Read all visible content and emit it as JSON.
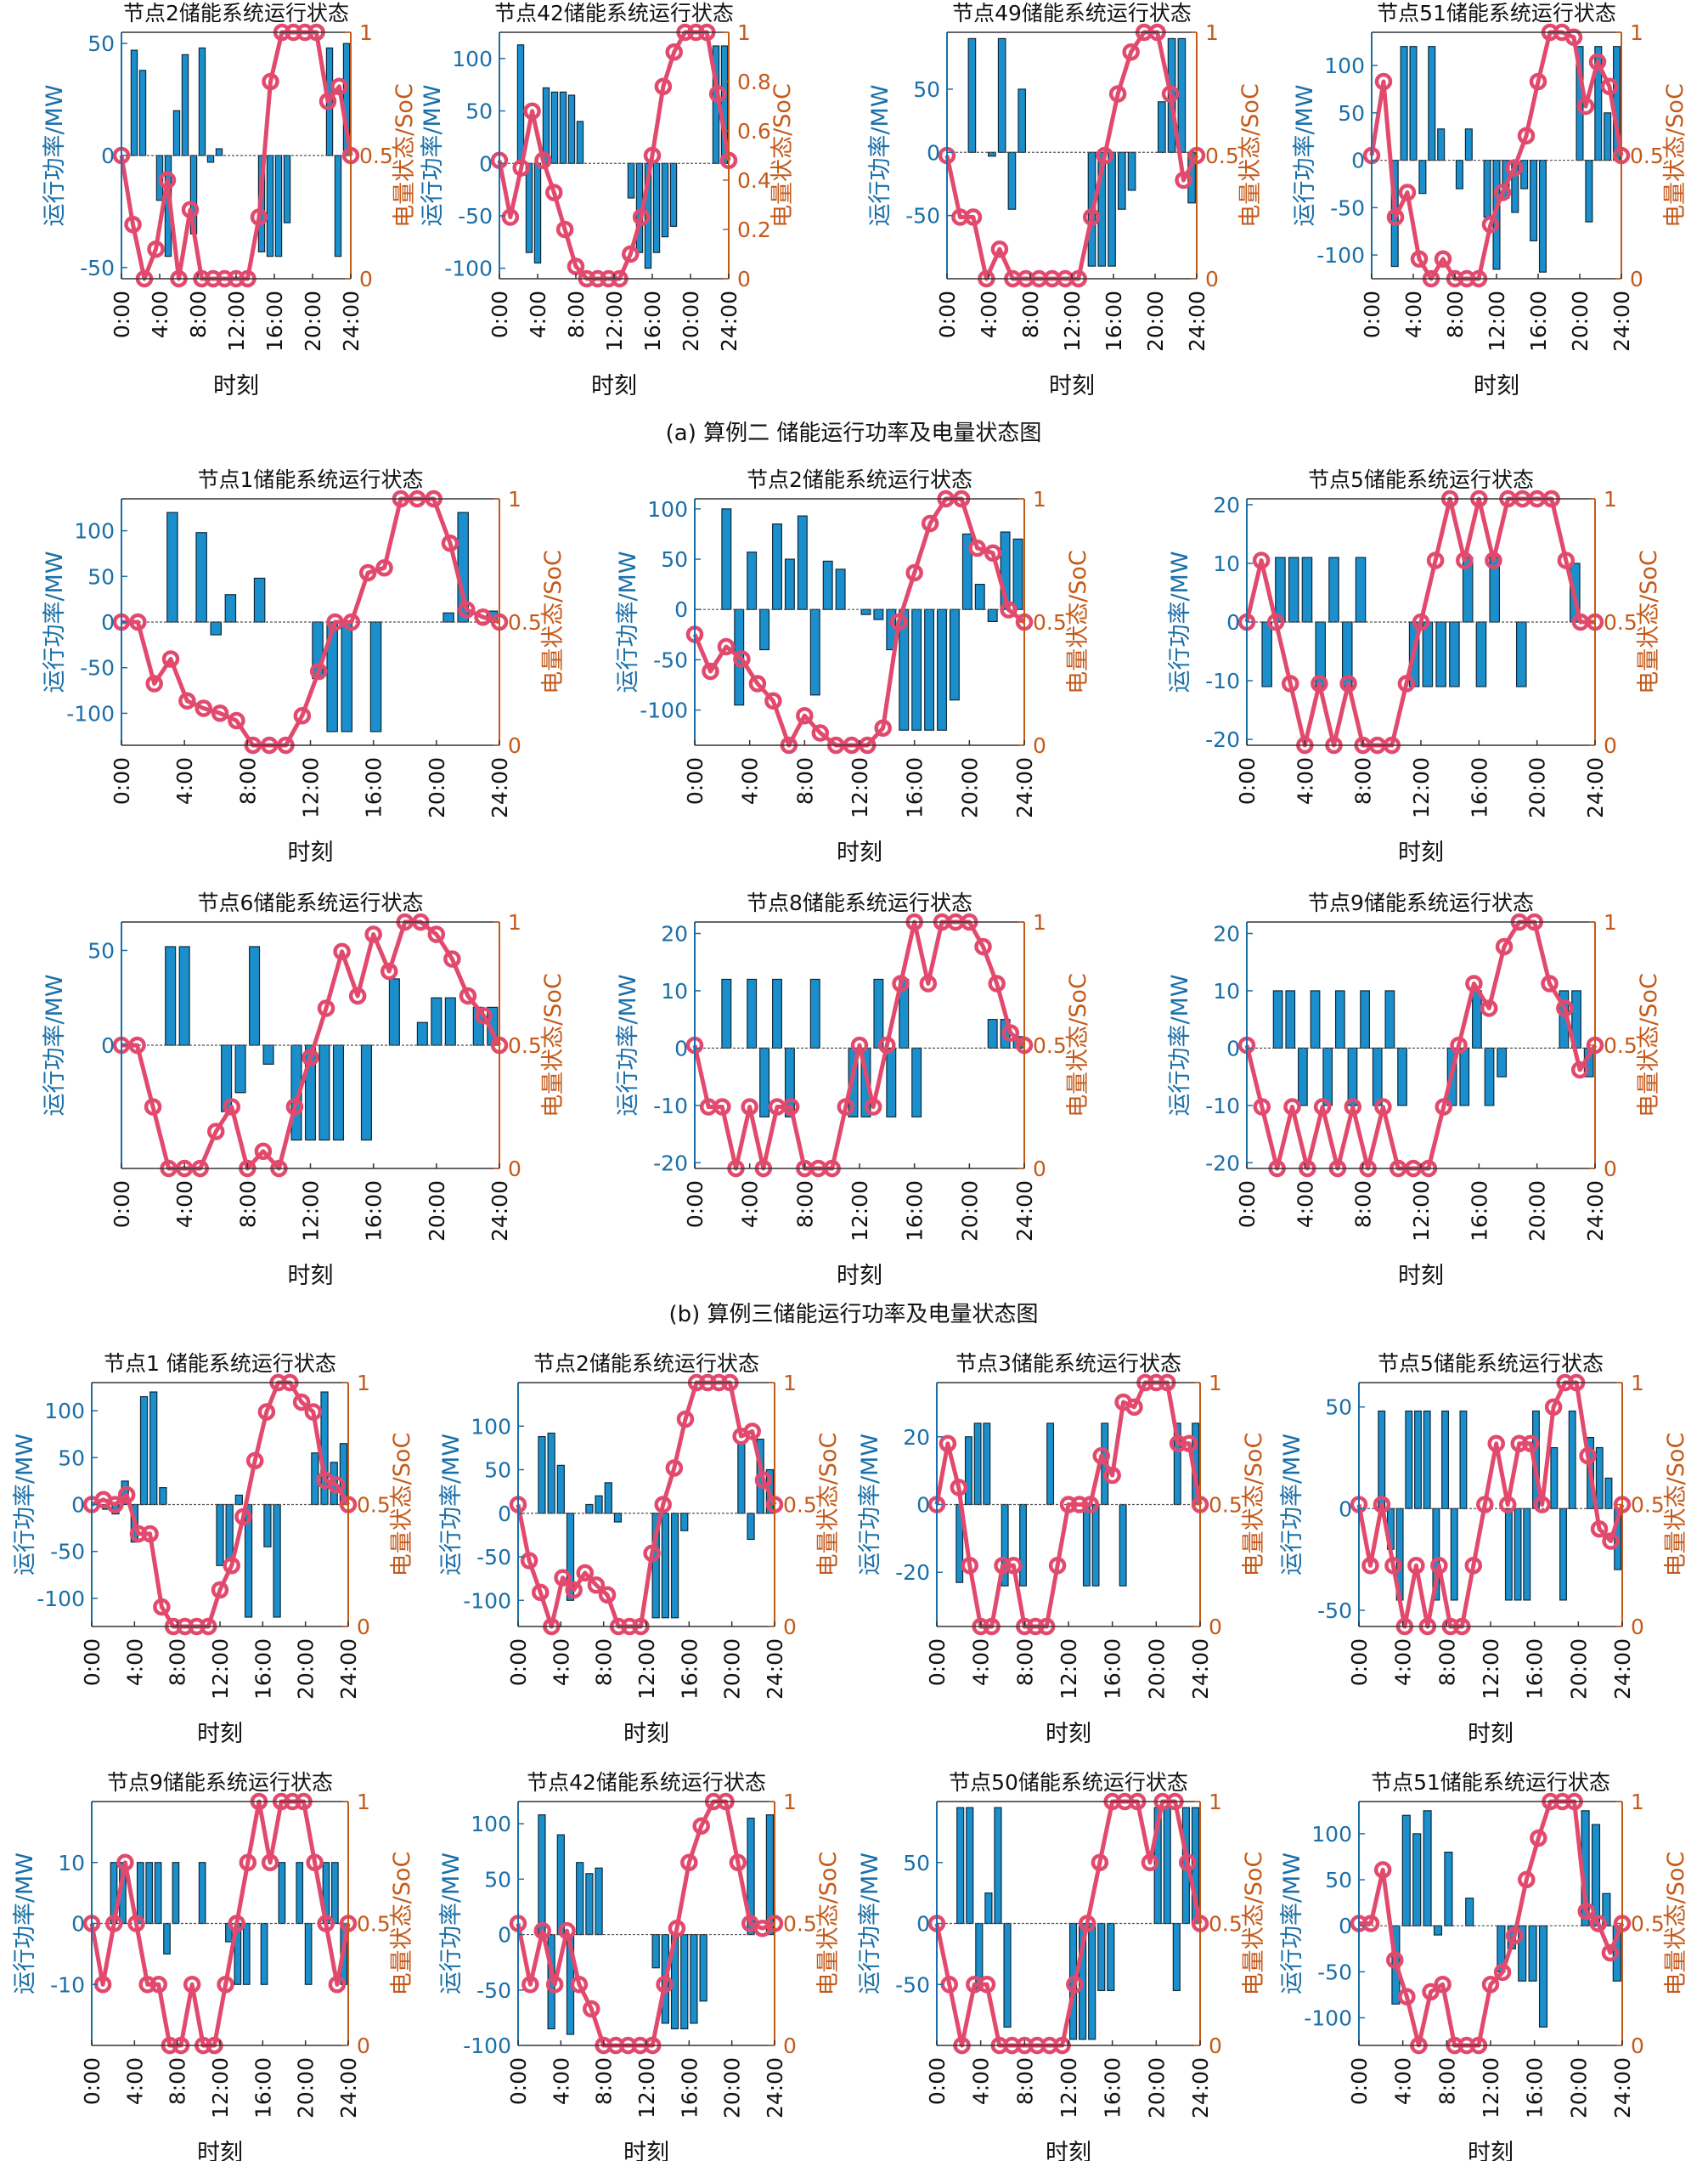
{
  "colors": {
    "power": "#1b8fcb",
    "soc": "#e24a6d",
    "left_axis": "#1a6fa8",
    "right_axis": "#c45a1a"
  },
  "x_ticks": [
    "0:00",
    "4:00",
    "8:00",
    "12:00",
    "16:00",
    "20:00",
    "24:00"
  ],
  "soc_ticks_default": [
    "0",
    "0.5",
    "1"
  ],
  "xlabel": "时刻",
  "ylabel_left": "运行功率/MW",
  "ylabel_right": "电量状态/SoC",
  "captions": {
    "a": "(a)  算例二  储能运行功率及电量状态图",
    "b": "(b)  算例三储能运行功率及电量状态图"
  },
  "chart_data": [
    {
      "type": "bar",
      "title": "节点2储能系统运行状态",
      "ylim": [
        -55,
        55
      ],
      "yticks": [
        -50,
        0,
        50
      ],
      "power": [
        0,
        47,
        38,
        0,
        -20,
        -45,
        20,
        45,
        -35,
        48,
        -3,
        3,
        0,
        0,
        0,
        0,
        -43,
        -45,
        -45,
        -30,
        0,
        0,
        0,
        0,
        48,
        -45,
        50
      ],
      "soc": [
        0.5,
        0.22,
        0.0,
        0.12,
        0.4,
        0.0,
        0.28,
        0.0,
        0.0,
        0.0,
        0.0,
        0.0,
        0.25,
        0.8,
        1.0,
        1.0,
        1.0,
        1.0,
        0.72,
        0.78,
        0.5
      ]
    },
    {
      "type": "bar",
      "title": "节点42储能系统运行状态",
      "ylim": [
        -110,
        125
      ],
      "yticks": [
        -100,
        -50,
        0,
        50,
        100
      ],
      "soc_ticks": [
        "0",
        "0.2",
        "0.4",
        "0.6",
        "0.8",
        "1"
      ],
      "power": [
        0,
        0,
        113,
        -85,
        -95,
        72,
        68,
        68,
        65,
        40,
        0,
        0,
        0,
        0,
        0,
        -33,
        -85,
        -100,
        -85,
        -70,
        -60,
        0,
        0,
        0,
        0,
        112,
        112
      ],
      "soc": [
        0.48,
        0.25,
        0.45,
        0.68,
        0.48,
        0.35,
        0.2,
        0.05,
        0.0,
        0.0,
        0.0,
        0.0,
        0.1,
        0.25,
        0.5,
        0.78,
        0.92,
        1.0,
        1.0,
        1.0,
        0.75,
        0.48
      ]
    },
    {
      "type": "bar",
      "title": "节点49储能系统运行状态",
      "ylim": [
        -100,
        95
      ],
      "yticks": [
        -50,
        0,
        50
      ],
      "power": [
        0,
        0,
        90,
        0,
        -3,
        90,
        -45,
        50,
        0,
        0,
        0,
        0,
        0,
        0,
        -90,
        -90,
        -90,
        -45,
        -30,
        0,
        0,
        40,
        90,
        90,
        -40
      ],
      "soc": [
        0.5,
        0.25,
        0.25,
        0.0,
        0.12,
        0.0,
        0.0,
        0.0,
        0.0,
        0.0,
        0.0,
        0.25,
        0.5,
        0.75,
        0.92,
        1.0,
        1.0,
        0.75,
        0.4,
        0.5
      ]
    },
    {
      "type": "bar",
      "title": "节点51储能系统运行状态",
      "ylim": [
        -125,
        135
      ],
      "yticks": [
        -100,
        -50,
        0,
        50,
        100
      ],
      "power": [
        0,
        0,
        -112,
        120,
        120,
        -35,
        120,
        33,
        0,
        -30,
        33,
        0,
        -60,
        -115,
        -40,
        -55,
        -30,
        -85,
        -118,
        0,
        0,
        0,
        120,
        -65,
        120,
        50,
        120
      ],
      "soc": [
        0.5,
        0.8,
        0.25,
        0.35,
        0.08,
        0.0,
        0.08,
        0.0,
        0.0,
        0.0,
        0.22,
        0.35,
        0.45,
        0.58,
        0.8,
        1.0,
        1.0,
        0.98,
        0.7,
        0.88,
        0.78,
        0.5
      ]
    },
    {
      "type": "bar",
      "title": "节点1储能系统运行状态",
      "ylim": [
        -135,
        135
      ],
      "yticks": [
        -100,
        -50,
        0,
        50,
        100
      ],
      "power": [
        0,
        0,
        0,
        120,
        0,
        98,
        -14,
        30,
        0,
        48,
        0,
        0,
        0,
        -62,
        -120,
        -120,
        0,
        -120,
        0,
        0,
        0,
        0,
        10,
        120,
        0,
        12
      ],
      "soc": [
        0.5,
        0.5,
        0.25,
        0.35,
        0.18,
        0.15,
        0.13,
        0.1,
        0.0,
        0.0,
        0.0,
        0.12,
        0.3,
        0.5,
        0.5,
        0.7,
        0.72,
        1.0,
        1.0,
        1.0,
        0.82,
        0.55,
        0.52,
        0.5
      ]
    },
    {
      "type": "bar",
      "title": "节点2储能系统运行状态",
      "ylim": [
        -135,
        110
      ],
      "yticks": [
        -100,
        -50,
        0,
        50,
        100
      ],
      "power": [
        0,
        0,
        100,
        -95,
        57,
        -40,
        85,
        50,
        93,
        -85,
        48,
        40,
        0,
        -5,
        -10,
        -40,
        -120,
        -120,
        -120,
        -120,
        -90,
        75,
        25,
        -12,
        77,
        70
      ],
      "soc": [
        0.45,
        0.3,
        0.4,
        0.35,
        0.25,
        0.18,
        0.0,
        0.12,
        0.05,
        0.0,
        0.0,
        0.0,
        0.07,
        0.5,
        0.7,
        0.9,
        1.0,
        1.0,
        0.8,
        0.78,
        0.55,
        0.5
      ]
    },
    {
      "type": "bar",
      "title": "节点5储能系统运行状态",
      "ylim": [
        -21,
        21
      ],
      "yticks": [
        -20,
        -10,
        0,
        10,
        20
      ],
      "power": [
        0,
        -11,
        11,
        11,
        11,
        -11,
        11,
        -11,
        11,
        0,
        0,
        0,
        -11,
        -11,
        -11,
        -11,
        11,
        -11,
        11,
        0,
        -11,
        0,
        0,
        0,
        10,
        0
      ],
      "soc": [
        0.5,
        0.75,
        0.5,
        0.25,
        0.0,
        0.25,
        0.0,
        0.25,
        0.0,
        0.0,
        0.0,
        0.25,
        0.5,
        0.75,
        1.0,
        0.75,
        1.0,
        0.75,
        1.0,
        1.0,
        1.0,
        1.0,
        0.75,
        0.5,
        0.5
      ]
    },
    {
      "type": "bar",
      "title": "节点6储能系统运行状态",
      "ylim": [
        -65,
        65
      ],
      "yticks": [
        0,
        50
      ],
      "power": [
        0,
        0,
        0,
        52,
        52,
        0,
        0,
        -35,
        -25,
        52,
        -10,
        0,
        -50,
        -50,
        -50,
        -50,
        0,
        -50,
        0,
        35,
        0,
        12,
        25,
        25,
        0,
        20,
        20
      ],
      "soc": [
        0.5,
        0.5,
        0.25,
        0.0,
        0.0,
        0.0,
        0.15,
        0.25,
        0.0,
        0.07,
        0.0,
        0.25,
        0.45,
        0.65,
        0.88,
        0.7,
        0.95,
        0.8,
        1.0,
        1.0,
        0.95,
        0.85,
        0.7,
        0.62,
        0.5
      ]
    },
    {
      "type": "bar",
      "title": "节点8储能系统运行状态",
      "ylim": [
        -21,
        22
      ],
      "yticks": [
        -20,
        -10,
        0,
        10,
        20
      ],
      "power": [
        0,
        0,
        12,
        0,
        12,
        -12,
        12,
        -12,
        0,
        12,
        0,
        0,
        -12,
        -12,
        12,
        -12,
        12,
        -12,
        0,
        0,
        0,
        0,
        0,
        5,
        5,
        2
      ],
      "soc": [
        0.5,
        0.25,
        0.25,
        0.0,
        0.25,
        0.0,
        0.25,
        0.25,
        0.0,
        0.0,
        0.0,
        0.25,
        0.5,
        0.25,
        0.5,
        0.75,
        1.0,
        0.75,
        1.0,
        1.0,
        1.0,
        0.9,
        0.75,
        0.55,
        0.5
      ]
    },
    {
      "type": "bar",
      "title": "节点9储能系统运行状态",
      "ylim": [
        -21,
        22
      ],
      "yticks": [
        -20,
        -10,
        0,
        10,
        20
      ],
      "power": [
        0,
        0,
        10,
        10,
        -10,
        10,
        -10,
        10,
        -10,
        10,
        -10,
        10,
        -10,
        0,
        0,
        0,
        -10,
        -10,
        10,
        -10,
        -5,
        0,
        0,
        0,
        0,
        10,
        10,
        -5
      ],
      "soc": [
        0.5,
        0.25,
        0.0,
        0.25,
        0.0,
        0.25,
        0.0,
        0.25,
        0.0,
        0.25,
        0.0,
        0.0,
        0.0,
        0.25,
        0.5,
        0.75,
        0.65,
        0.9,
        1.0,
        1.0,
        0.75,
        0.65,
        0.4,
        0.5
      ]
    },
    {
      "type": "bar",
      "title": "节点1 储能系统运行状态",
      "ylim": [
        -130,
        130
      ],
      "yticks": [
        -100,
        -50,
        0,
        50,
        100
      ],
      "power": [
        0,
        -5,
        -10,
        25,
        -40,
        115,
        120,
        18,
        0,
        0,
        0,
        0,
        0,
        -65,
        -60,
        10,
        -120,
        0,
        -45,
        -120,
        0,
        0,
        0,
        55,
        120,
        45,
        65
      ],
      "soc": [
        0.5,
        0.52,
        0.5,
        0.54,
        0.38,
        0.38,
        0.08,
        0.0,
        0.0,
        0.0,
        0.0,
        0.15,
        0.25,
        0.45,
        0.68,
        0.88,
        1.0,
        1.0,
        0.92,
        0.88,
        0.6,
        0.58,
        0.5
      ]
    },
    {
      "type": "bar",
      "title": "节点2储能系统运行状态",
      "ylim": [
        -130,
        150
      ],
      "yticks": [
        -100,
        -50,
        0,
        50,
        100
      ],
      "power": [
        0,
        0,
        88,
        92,
        55,
        -100,
        0,
        10,
        20,
        35,
        -10,
        0,
        0,
        0,
        -120,
        -120,
        -120,
        -20,
        0,
        0,
        0,
        0,
        0,
        80,
        -30,
        85,
        50
      ],
      "soc": [
        0.5,
        0.27,
        0.14,
        0.0,
        0.2,
        0.15,
        0.22,
        0.17,
        0.13,
        0.0,
        0.0,
        0.0,
        0.3,
        0.5,
        0.65,
        0.85,
        1.0,
        1.0,
        1.0,
        1.0,
        0.78,
        0.8,
        0.6,
        0.5
      ]
    },
    {
      "type": "bar",
      "title": "节点3储能系统运行状态",
      "ylim": [
        -36,
        36
      ],
      "yticks": [
        -20,
        0,
        20
      ],
      "power": [
        0,
        0,
        -23,
        20,
        24,
        24,
        0,
        -24,
        0,
        -24,
        0,
        0,
        24,
        0,
        0,
        0,
        -24,
        -24,
        24,
        0,
        -24,
        0,
        0,
        0,
        0,
        0,
        24,
        0,
        24
      ],
      "soc": [
        0.5,
        0.75,
        0.57,
        0.25,
        0.0,
        0.0,
        0.25,
        0.25,
        0.0,
        0.0,
        0.0,
        0.25,
        0.5,
        0.5,
        0.5,
        0.7,
        0.62,
        0.92,
        0.9,
        1.0,
        1.0,
        1.0,
        0.75,
        0.75,
        0.5
      ]
    },
    {
      "type": "bar",
      "title": "节点5储能系统运行状态",
      "ylim": [
        -58,
        62
      ],
      "yticks": [
        -50,
        0,
        50
      ],
      "power": [
        0,
        0,
        48,
        -20,
        -45,
        48,
        48,
        48,
        -45,
        48,
        -45,
        48,
        0,
        0,
        0,
        0,
        -45,
        -45,
        -45,
        48,
        0,
        30,
        -45,
        48,
        0,
        35,
        30,
        15,
        -30
      ],
      "soc": [
        0.5,
        0.25,
        0.5,
        0.25,
        0.0,
        0.25,
        0.0,
        0.25,
        0.0,
        0.0,
        0.25,
        0.5,
        0.75,
        0.5,
        0.75,
        0.75,
        0.5,
        0.9,
        1.0,
        1.0,
        0.7,
        0.4,
        0.35,
        0.5
      ]
    },
    {
      "type": "bar",
      "title": "节点9储能系统运行状态",
      "ylim": [
        -20,
        20
      ],
      "yticks": [
        -10,
        0,
        10
      ],
      "power": [
        0,
        0,
        10,
        10,
        0,
        10,
        10,
        10,
        -5,
        10,
        0,
        0,
        10,
        0,
        0,
        -3,
        -10,
        -10,
        0,
        -10,
        0,
        10,
        0,
        10,
        -10,
        0,
        10,
        10,
        -10
      ],
      "soc": [
        0.5,
        0.25,
        0.5,
        0.75,
        0.5,
        0.25,
        0.25,
        0.0,
        0.0,
        0.25,
        0.0,
        0.0,
        0.25,
        0.5,
        0.75,
        1.0,
        0.75,
        1.0,
        1.0,
        1.0,
        0.75,
        0.5,
        0.25,
        0.5
      ]
    },
    {
      "type": "bar",
      "title": "节点42储能系统运行状态",
      "ylim": [
        -100,
        120
      ],
      "yticks": [
        -100,
        -50,
        0,
        50,
        100
      ],
      "power": [
        0,
        0,
        108,
        -85,
        90,
        -90,
        65,
        55,
        60,
        0,
        0,
        0,
        0,
        0,
        -30,
        -80,
        -85,
        -85,
        -80,
        -60,
        0,
        0,
        0,
        0,
        105,
        0,
        108
      ],
      "soc": [
        0.5,
        0.25,
        0.47,
        0.25,
        0.47,
        0.25,
        0.15,
        0.0,
        0.0,
        0.0,
        0.0,
        0.0,
        0.25,
        0.48,
        0.75,
        0.9,
        1.0,
        1.0,
        0.75,
        0.5,
        0.48,
        0.5
      ]
    },
    {
      "type": "bar",
      "title": "节点50储能系统运行状态",
      "ylim": [
        -100,
        100
      ],
      "yticks": [
        -50,
        0,
        50
      ],
      "power": [
        0,
        0,
        95,
        95,
        -55,
        25,
        95,
        -85,
        0,
        0,
        0,
        0,
        0,
        0,
        -95,
        -95,
        -95,
        -55,
        -55,
        0,
        0,
        0,
        0,
        95,
        95,
        -55,
        95,
        95
      ],
      "soc": [
        0.5,
        0.25,
        0.0,
        0.25,
        0.25,
        0.0,
        0.0,
        0.0,
        0.0,
        0.0,
        0.0,
        0.25,
        0.5,
        0.75,
        1.0,
        1.0,
        1.0,
        0.75,
        1.0,
        1.0,
        0.75,
        0.5
      ]
    },
    {
      "type": "bar",
      "title": "节点51储能系统运行状态",
      "ylim": [
        -130,
        135
      ],
      "yticks": [
        -100,
        -50,
        0,
        50,
        100
      ],
      "power": [
        0,
        0,
        0,
        -85,
        120,
        100,
        125,
        -10,
        80,
        0,
        30,
        0,
        0,
        -50,
        -25,
        -60,
        -60,
        -110,
        0,
        0,
        0,
        125,
        110,
        35,
        -60
      ],
      "soc": [
        0.5,
        0.5,
        0.72,
        0.35,
        0.2,
        0.0,
        0.22,
        0.25,
        0.0,
        0.0,
        0.0,
        0.25,
        0.3,
        0.45,
        0.68,
        0.85,
        1.0,
        1.0,
        1.0,
        0.55,
        0.5,
        0.38,
        0.5
      ]
    }
  ]
}
